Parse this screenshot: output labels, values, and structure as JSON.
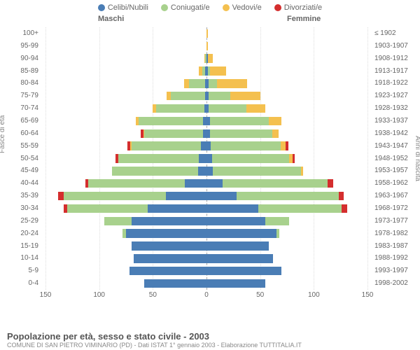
{
  "chart": {
    "type": "population-pyramid",
    "colors": {
      "single": "#4a7db5",
      "married": "#a8d18d",
      "widowed": "#f4c04f",
      "divorced": "#d42e2e",
      "bg": "#ffffff",
      "grid": "#dddddd",
      "text": "#666666"
    },
    "legend": [
      {
        "key": "single",
        "label": "Celibi/Nubili"
      },
      {
        "key": "married",
        "label": "Coniugati/e"
      },
      {
        "key": "widowed",
        "label": "Vedovi/e"
      },
      {
        "key": "divorced",
        "label": "Divorziati/e"
      }
    ],
    "header_male": "Maschi",
    "header_female": "Femmine",
    "y_axis_left_label": "Fasce di età",
    "y_axis_right_label": "Anni di nascita",
    "x_ticks": [
      150,
      100,
      50,
      0,
      50,
      100,
      150
    ],
    "x_max": 150,
    "age_groups": [
      "100+",
      "95-99",
      "90-94",
      "85-89",
      "80-84",
      "75-79",
      "70-74",
      "65-69",
      "60-64",
      "55-59",
      "50-54",
      "45-49",
      "40-44",
      "35-39",
      "30-34",
      "25-29",
      "20-24",
      "15-19",
      "10-14",
      "5-9",
      "0-4"
    ],
    "birth_years": [
      "≤ 1902",
      "1903-1907",
      "1908-1912",
      "1913-1917",
      "1918-1922",
      "1923-1927",
      "1928-1932",
      "1933-1937",
      "1938-1942",
      "1943-1947",
      "1948-1952",
      "1953-1957",
      "1958-1962",
      "1963-1967",
      "1968-1972",
      "1973-1977",
      "1978-1982",
      "1983-1987",
      "1988-1992",
      "1993-1997",
      "1998-2002"
    ],
    "male": [
      {
        "s": 0,
        "m": 0,
        "w": 0,
        "d": 0
      },
      {
        "s": 0,
        "m": 0,
        "w": 0,
        "d": 0
      },
      {
        "s": 0,
        "m": 1,
        "w": 1,
        "d": 0
      },
      {
        "s": 1,
        "m": 3,
        "w": 3,
        "d": 0
      },
      {
        "s": 1,
        "m": 15,
        "w": 5,
        "d": 0
      },
      {
        "s": 1,
        "m": 32,
        "w": 4,
        "d": 0
      },
      {
        "s": 2,
        "m": 45,
        "w": 3,
        "d": 0
      },
      {
        "s": 3,
        "m": 60,
        "w": 3,
        "d": 0
      },
      {
        "s": 3,
        "m": 55,
        "w": 1,
        "d": 2
      },
      {
        "s": 5,
        "m": 65,
        "w": 1,
        "d": 3
      },
      {
        "s": 7,
        "m": 75,
        "w": 0,
        "d": 3
      },
      {
        "s": 8,
        "m": 80,
        "w": 0,
        "d": 0
      },
      {
        "s": 20,
        "m": 90,
        "w": 0,
        "d": 3
      },
      {
        "s": 38,
        "m": 95,
        "w": 0,
        "d": 5
      },
      {
        "s": 55,
        "m": 75,
        "w": 0,
        "d": 3
      },
      {
        "s": 70,
        "m": 25,
        "w": 0,
        "d": 0
      },
      {
        "s": 75,
        "m": 3,
        "w": 0,
        "d": 0
      },
      {
        "s": 70,
        "m": 0,
        "w": 0,
        "d": 0
      },
      {
        "s": 68,
        "m": 0,
        "w": 0,
        "d": 0
      },
      {
        "s": 72,
        "m": 0,
        "w": 0,
        "d": 0
      },
      {
        "s": 58,
        "m": 0,
        "w": 0,
        "d": 0
      }
    ],
    "female": [
      {
        "s": 0,
        "m": 0,
        "w": 1,
        "d": 0
      },
      {
        "s": 0,
        "m": 0,
        "w": 1,
        "d": 0
      },
      {
        "s": 1,
        "m": 0,
        "w": 5,
        "d": 0
      },
      {
        "s": 1,
        "m": 2,
        "w": 15,
        "d": 0
      },
      {
        "s": 2,
        "m": 8,
        "w": 28,
        "d": 0
      },
      {
        "s": 2,
        "m": 20,
        "w": 28,
        "d": 0
      },
      {
        "s": 2,
        "m": 35,
        "w": 18,
        "d": 0
      },
      {
        "s": 3,
        "m": 55,
        "w": 12,
        "d": 0
      },
      {
        "s": 3,
        "m": 58,
        "w": 6,
        "d": 0
      },
      {
        "s": 4,
        "m": 65,
        "w": 5,
        "d": 2
      },
      {
        "s": 5,
        "m": 72,
        "w": 3,
        "d": 2
      },
      {
        "s": 6,
        "m": 82,
        "w": 2,
        "d": 0
      },
      {
        "s": 15,
        "m": 98,
        "w": 0,
        "d": 5
      },
      {
        "s": 28,
        "m": 95,
        "w": 0,
        "d": 5
      },
      {
        "s": 48,
        "m": 78,
        "w": 0,
        "d": 5
      },
      {
        "s": 55,
        "m": 22,
        "w": 0,
        "d": 0
      },
      {
        "s": 65,
        "m": 3,
        "w": 0,
        "d": 0
      },
      {
        "s": 58,
        "m": 0,
        "w": 0,
        "d": 0
      },
      {
        "s": 62,
        "m": 0,
        "w": 0,
        "d": 0
      },
      {
        "s": 70,
        "m": 0,
        "w": 0,
        "d": 0
      },
      {
        "s": 55,
        "m": 0,
        "w": 0,
        "d": 0
      }
    ],
    "title": "Popolazione per età, sesso e stato civile - 2003",
    "subtitle": "COMUNE DI SAN PIETRO VIMINARIO (PD) - Dati ISTAT 1° gennaio 2003 - Elaborazione TUTTITALIA.IT"
  }
}
